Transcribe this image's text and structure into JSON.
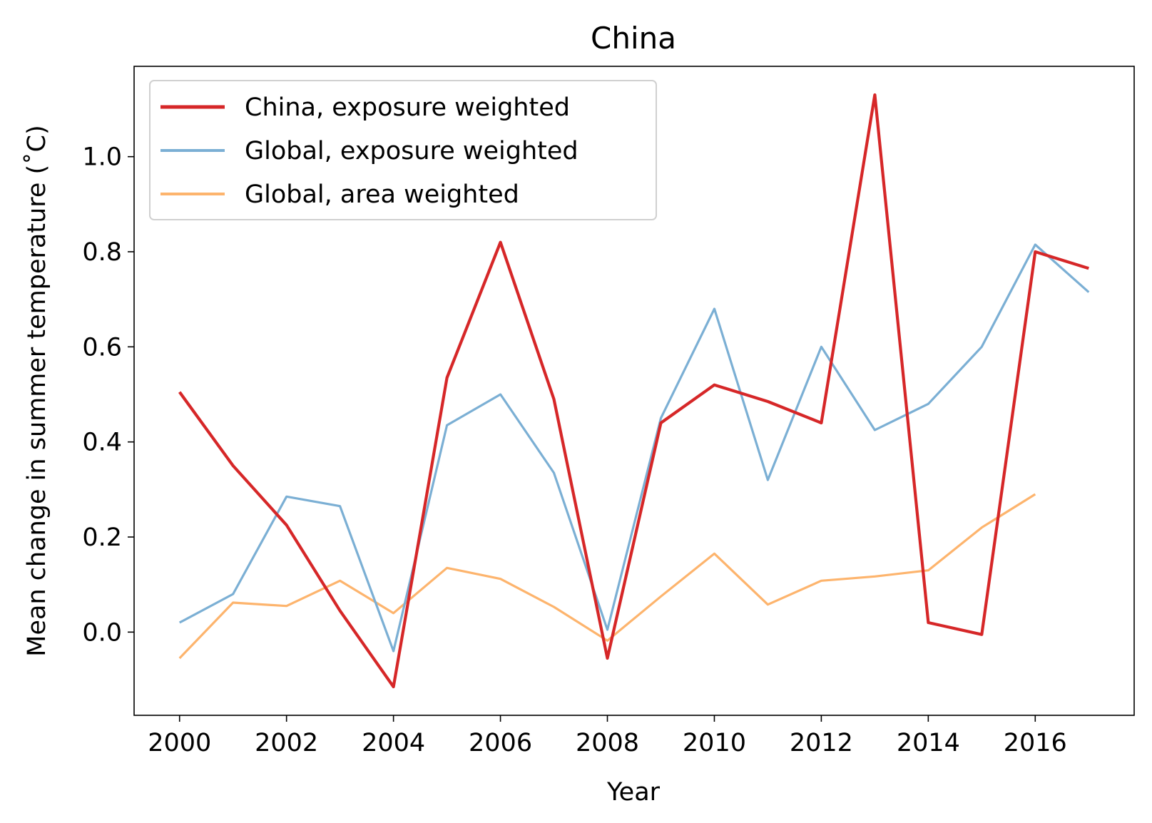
{
  "chart_data": {
    "type": "line",
    "title": "China",
    "xlabel": "Year",
    "ylabel": "Mean change in summer temperature (˚C)",
    "xlim": [
      1999.15,
      2017.85
    ],
    "ylim": [
      -0.175,
      1.19
    ],
    "xticks": [
      2000,
      2002,
      2004,
      2006,
      2008,
      2010,
      2012,
      2014,
      2016
    ],
    "xtick_labels": [
      "2000",
      "2002",
      "2004",
      "2006",
      "2008",
      "2010",
      "2012",
      "2014",
      "2016"
    ],
    "yticks": [
      0.0,
      0.2,
      0.4,
      0.6,
      0.8,
      1.0
    ],
    "ytick_labels": [
      "0.0",
      "0.2",
      "0.4",
      "0.6",
      "0.8",
      "1.0"
    ],
    "grid": false,
    "legend_position": "top-left",
    "series": [
      {
        "name": "China, exposure weighted",
        "color": "#d62728",
        "x": [
          2000,
          2001,
          2002,
          2003,
          2004,
          2005,
          2006,
          2007,
          2008,
          2009,
          2010,
          2011,
          2012,
          2013,
          2014,
          2015,
          2016,
          2017
        ],
        "values": [
          0.505,
          0.35,
          0.225,
          0.045,
          -0.115,
          0.535,
          0.82,
          0.49,
          -0.055,
          0.44,
          0.52,
          0.485,
          0.44,
          1.13,
          0.02,
          -0.005,
          0.8,
          0.765
        ]
      },
      {
        "name": "Global, exposure weighted",
        "color": "#7bafd4",
        "x": [
          2000,
          2001,
          2002,
          2003,
          2004,
          2005,
          2006,
          2007,
          2008,
          2009,
          2010,
          2011,
          2012,
          2013,
          2014,
          2015,
          2016,
          2017
        ],
        "values": [
          0.02,
          0.08,
          0.285,
          0.265,
          -0.04,
          0.435,
          0.5,
          0.335,
          0.005,
          0.45,
          0.68,
          0.32,
          0.6,
          0.425,
          0.48,
          0.6,
          0.815,
          0.715
        ]
      },
      {
        "name": "Global, area weighted",
        "color": "#fdb46d",
        "x": [
          2000,
          2001,
          2002,
          2003,
          2004,
          2005,
          2006,
          2007,
          2008,
          2009,
          2010,
          2011,
          2012,
          2013,
          2014,
          2015,
          2016
        ],
        "values": [
          -0.055,
          0.062,
          0.055,
          0.108,
          0.04,
          0.135,
          0.112,
          0.053,
          -0.018,
          0.075,
          0.165,
          0.058,
          0.108,
          0.117,
          0.13,
          0.22,
          0.29
        ]
      }
    ]
  }
}
